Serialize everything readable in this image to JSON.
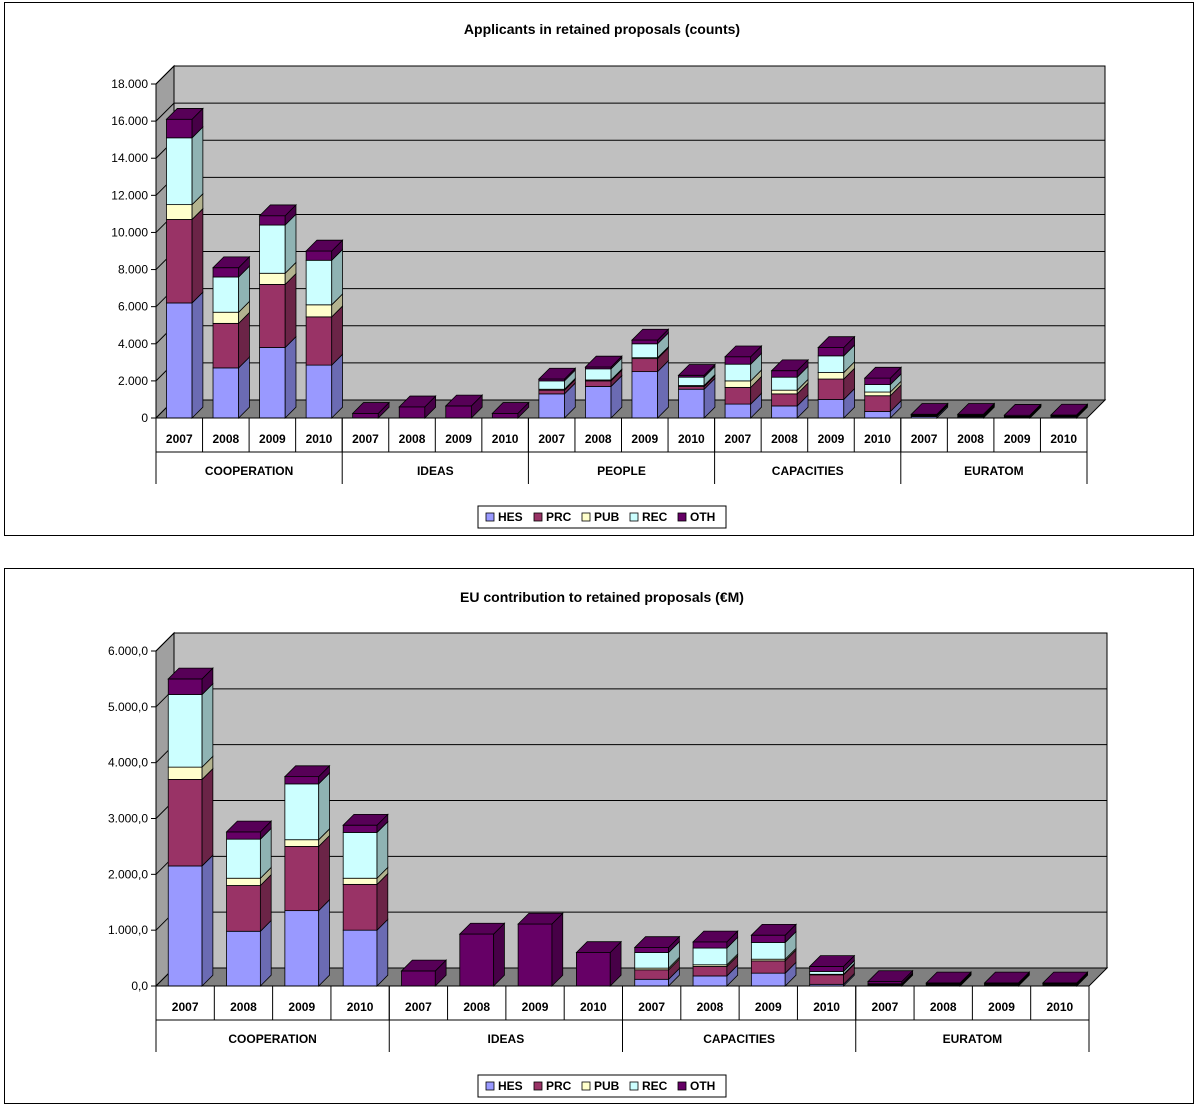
{
  "chart_data": [
    {
      "type": "bar",
      "stacked": true,
      "title": "Applicants in retained proposals (counts)",
      "ylim": [
        0,
        18000
      ],
      "y_ticks": [
        "0",
        "2.000",
        "4.000",
        "6.000",
        "8.000",
        "10.000",
        "12.000",
        "14.000",
        "16.000",
        "18.000"
      ],
      "groups": [
        {
          "name": "COOPERATION",
          "categories": [
            "2007",
            "2008",
            "2009",
            "2010"
          ]
        },
        {
          "name": "IDEAS",
          "categories": [
            "2007",
            "2008",
            "2009",
            "2010"
          ]
        },
        {
          "name": "PEOPLE",
          "categories": [
            "2007",
            "2008",
            "2009",
            "2010"
          ]
        },
        {
          "name": "CAPACITIES",
          "categories": [
            "2007",
            "2008",
            "2009",
            "2010"
          ]
        },
        {
          "name": "EURATOM",
          "categories": [
            "2007",
            "2008",
            "2009",
            "2010"
          ]
        }
      ],
      "series": [
        {
          "name": "HES",
          "color": "#9999ff",
          "values": [
            6200,
            2700,
            3800,
            2850,
            0,
            0,
            0,
            0,
            1300,
            1700,
            2500,
            1550,
            750,
            650,
            1000,
            350,
            80,
            60,
            40,
            60
          ]
        },
        {
          "name": "PRC",
          "color": "#993366",
          "values": [
            4500,
            2400,
            3400,
            2600,
            0,
            0,
            0,
            0,
            200,
            300,
            700,
            150,
            900,
            650,
            1100,
            850,
            40,
            40,
            20,
            30
          ]
        },
        {
          "name": "PUB",
          "color": "#ffffcc",
          "values": [
            800,
            600,
            600,
            650,
            0,
            0,
            0,
            0,
            50,
            50,
            50,
            50,
            350,
            200,
            350,
            200,
            20,
            20,
            10,
            10
          ]
        },
        {
          "name": "REC",
          "color": "#ccffff",
          "values": [
            3600,
            1900,
            2600,
            2400,
            0,
            0,
            0,
            0,
            450,
            600,
            750,
            450,
            900,
            700,
            900,
            400,
            30,
            30,
            20,
            20
          ]
        },
        {
          "name": "OTH",
          "color": "#660066",
          "values": [
            1000,
            500,
            500,
            500,
            250,
            600,
            650,
            250,
            100,
            100,
            200,
            100,
            400,
            350,
            450,
            350,
            30,
            50,
            60,
            40
          ]
        }
      ],
      "legend": "bottom"
    },
    {
      "type": "bar",
      "stacked": true,
      "title": "EU contribution to retained proposals (€M)",
      "ylim": [
        0,
        6000
      ],
      "y_ticks": [
        "0,0",
        "1.000,0",
        "2.000,0",
        "3.000,0",
        "4.000,0",
        "5.000,0",
        "6.000,0"
      ],
      "groups": [
        {
          "name": "COOPERATION",
          "categories": [
            "2007",
            "2008",
            "2009",
            "2010"
          ]
        },
        {
          "name": "IDEAS",
          "categories": [
            "2007",
            "2008",
            "2009",
            "2010"
          ]
        },
        {
          "name": "CAPACITIES",
          "categories": [
            "2007",
            "2008",
            "2009",
            "2010"
          ]
        },
        {
          "name": "EURATOM",
          "categories": [
            "2007",
            "2008",
            "2009",
            "2010"
          ]
        }
      ],
      "series": [
        {
          "name": "HES",
          "color": "#9999ff",
          "values": [
            2150,
            980,
            1350,
            1000,
            0,
            0,
            0,
            0,
            120,
            180,
            230,
            30,
            10,
            10,
            10,
            10
          ]
        },
        {
          "name": "PRC",
          "color": "#993366",
          "values": [
            1550,
            820,
            1150,
            820,
            0,
            0,
            0,
            0,
            170,
            170,
            220,
            170,
            10,
            10,
            10,
            10
          ]
        },
        {
          "name": "PUB",
          "color": "#ffffcc",
          "values": [
            220,
            130,
            120,
            110,
            0,
            0,
            0,
            0,
            30,
            30,
            30,
            10,
            5,
            5,
            5,
            5
          ]
        },
        {
          "name": "REC",
          "color": "#ccffff",
          "values": [
            1300,
            700,
            1000,
            820,
            0,
            0,
            0,
            0,
            280,
            300,
            300,
            50,
            15,
            15,
            15,
            15
          ]
        },
        {
          "name": "OTH",
          "color": "#660066",
          "values": [
            280,
            130,
            130,
            130,
            270,
            930,
            1110,
            600,
            90,
            110,
            130,
            90,
            40,
            15,
            15,
            15
          ]
        }
      ],
      "legend": "bottom"
    }
  ]
}
